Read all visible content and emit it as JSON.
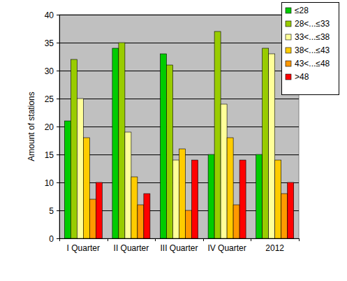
{
  "chart_data": {
    "type": "bar",
    "y_label": "Amount of stations",
    "categories": [
      "I Quarter",
      "II Quarter",
      "III Quarter",
      "IV Quarter",
      "2012"
    ],
    "series": [
      {
        "name": "≤28",
        "color": "#00cc00",
        "values": [
          21,
          34,
          33,
          15,
          15
        ]
      },
      {
        "name": "28<...≤33",
        "color": "#99cc00",
        "values": [
          32,
          35,
          31,
          37,
          34
        ]
      },
      {
        "name": "33<...≤38",
        "color": "#ffff99",
        "values": [
          25,
          19,
          14,
          24,
          33
        ]
      },
      {
        "name": "38<...≤43",
        "color": "#ffcc00",
        "values": [
          18,
          11,
          16,
          18,
          14
        ]
      },
      {
        "name": "43<...≤48",
        "color": "#ff9900",
        "values": [
          7,
          6,
          5,
          6,
          8
        ]
      },
      {
        "name": ">48",
        "color": "#ff0000",
        "values": [
          10,
          8,
          14,
          14,
          10
        ]
      }
    ],
    "ylim": [
      0,
      40
    ],
    "yticks": [
      0,
      5,
      10,
      15,
      20,
      25,
      30,
      35,
      40
    ],
    "grid": true,
    "legend": "top-right"
  }
}
